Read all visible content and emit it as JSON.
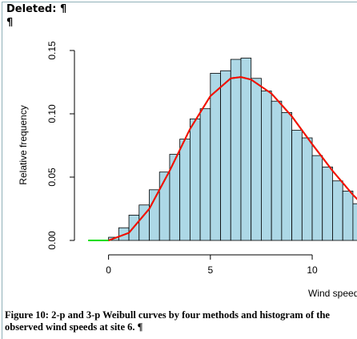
{
  "header": "Deleted: ¶",
  "pilcrow": "¶",
  "chart_data": {
    "type": "histogram",
    "ylabel": "Relative frequency",
    "xlabel": "Wind speed",
    "bins": [
      0,
      0.5,
      1,
      1.5,
      2,
      2.5,
      3,
      3.5,
      4,
      4.5,
      5,
      5.5,
      6,
      6.5,
      7,
      7.5,
      8,
      8.5,
      9,
      9.5,
      10,
      10.5,
      11,
      11.5,
      12,
      12.5
    ],
    "values": [
      0.0025,
      0.01,
      0.02,
      0.028,
      0.04,
      0.054,
      0.068,
      0.08,
      0.096,
      0.104,
      0.132,
      0.134,
      0.143,
      0.144,
      0.128,
      0.118,
      0.11,
      0.101,
      0.087,
      0.081,
      0.067,
      0.058,
      0.047,
      0.039,
      0.029
    ],
    "color": "#add8e6",
    "curves": [
      {
        "color": "#00dd00",
        "x": [
          -1,
          -0.5,
          0,
          1,
          2,
          3,
          4,
          5,
          6,
          6.5,
          7,
          8,
          9,
          10,
          11,
          12,
          12.5
        ],
        "values": [
          0,
          0,
          0,
          0.006,
          0.025,
          0.055,
          0.088,
          0.114,
          0.128,
          0.129,
          0.127,
          0.116,
          0.098,
          0.076,
          0.055,
          0.036,
          0.028
        ]
      },
      {
        "color": "#ff0000",
        "x": [
          0,
          1,
          2,
          3,
          4,
          5,
          6,
          6.5,
          7,
          8,
          9,
          10,
          11,
          12,
          12.5
        ],
        "values": [
          0,
          0.006,
          0.025,
          0.055,
          0.088,
          0.114,
          0.128,
          0.129,
          0.127,
          0.116,
          0.098,
          0.076,
          0.055,
          0.036,
          0.028
        ]
      }
    ],
    "xlim": [
      -1.4,
      12.2
    ],
    "ylim": [
      0,
      0.15
    ],
    "xticks": [
      0,
      5,
      10
    ],
    "yticks": [
      {
        "value": 0,
        "label": "0.00"
      },
      {
        "value": 0.05,
        "label": "0.05"
      },
      {
        "value": 0.1,
        "label": "0.10"
      },
      {
        "value": 0.15,
        "label": "0.15"
      }
    ]
  },
  "caption": "Figure 10: 2-p and 3-p Weibull curves by four methods and histogram of the observed wind speeds at site 6. ¶"
}
